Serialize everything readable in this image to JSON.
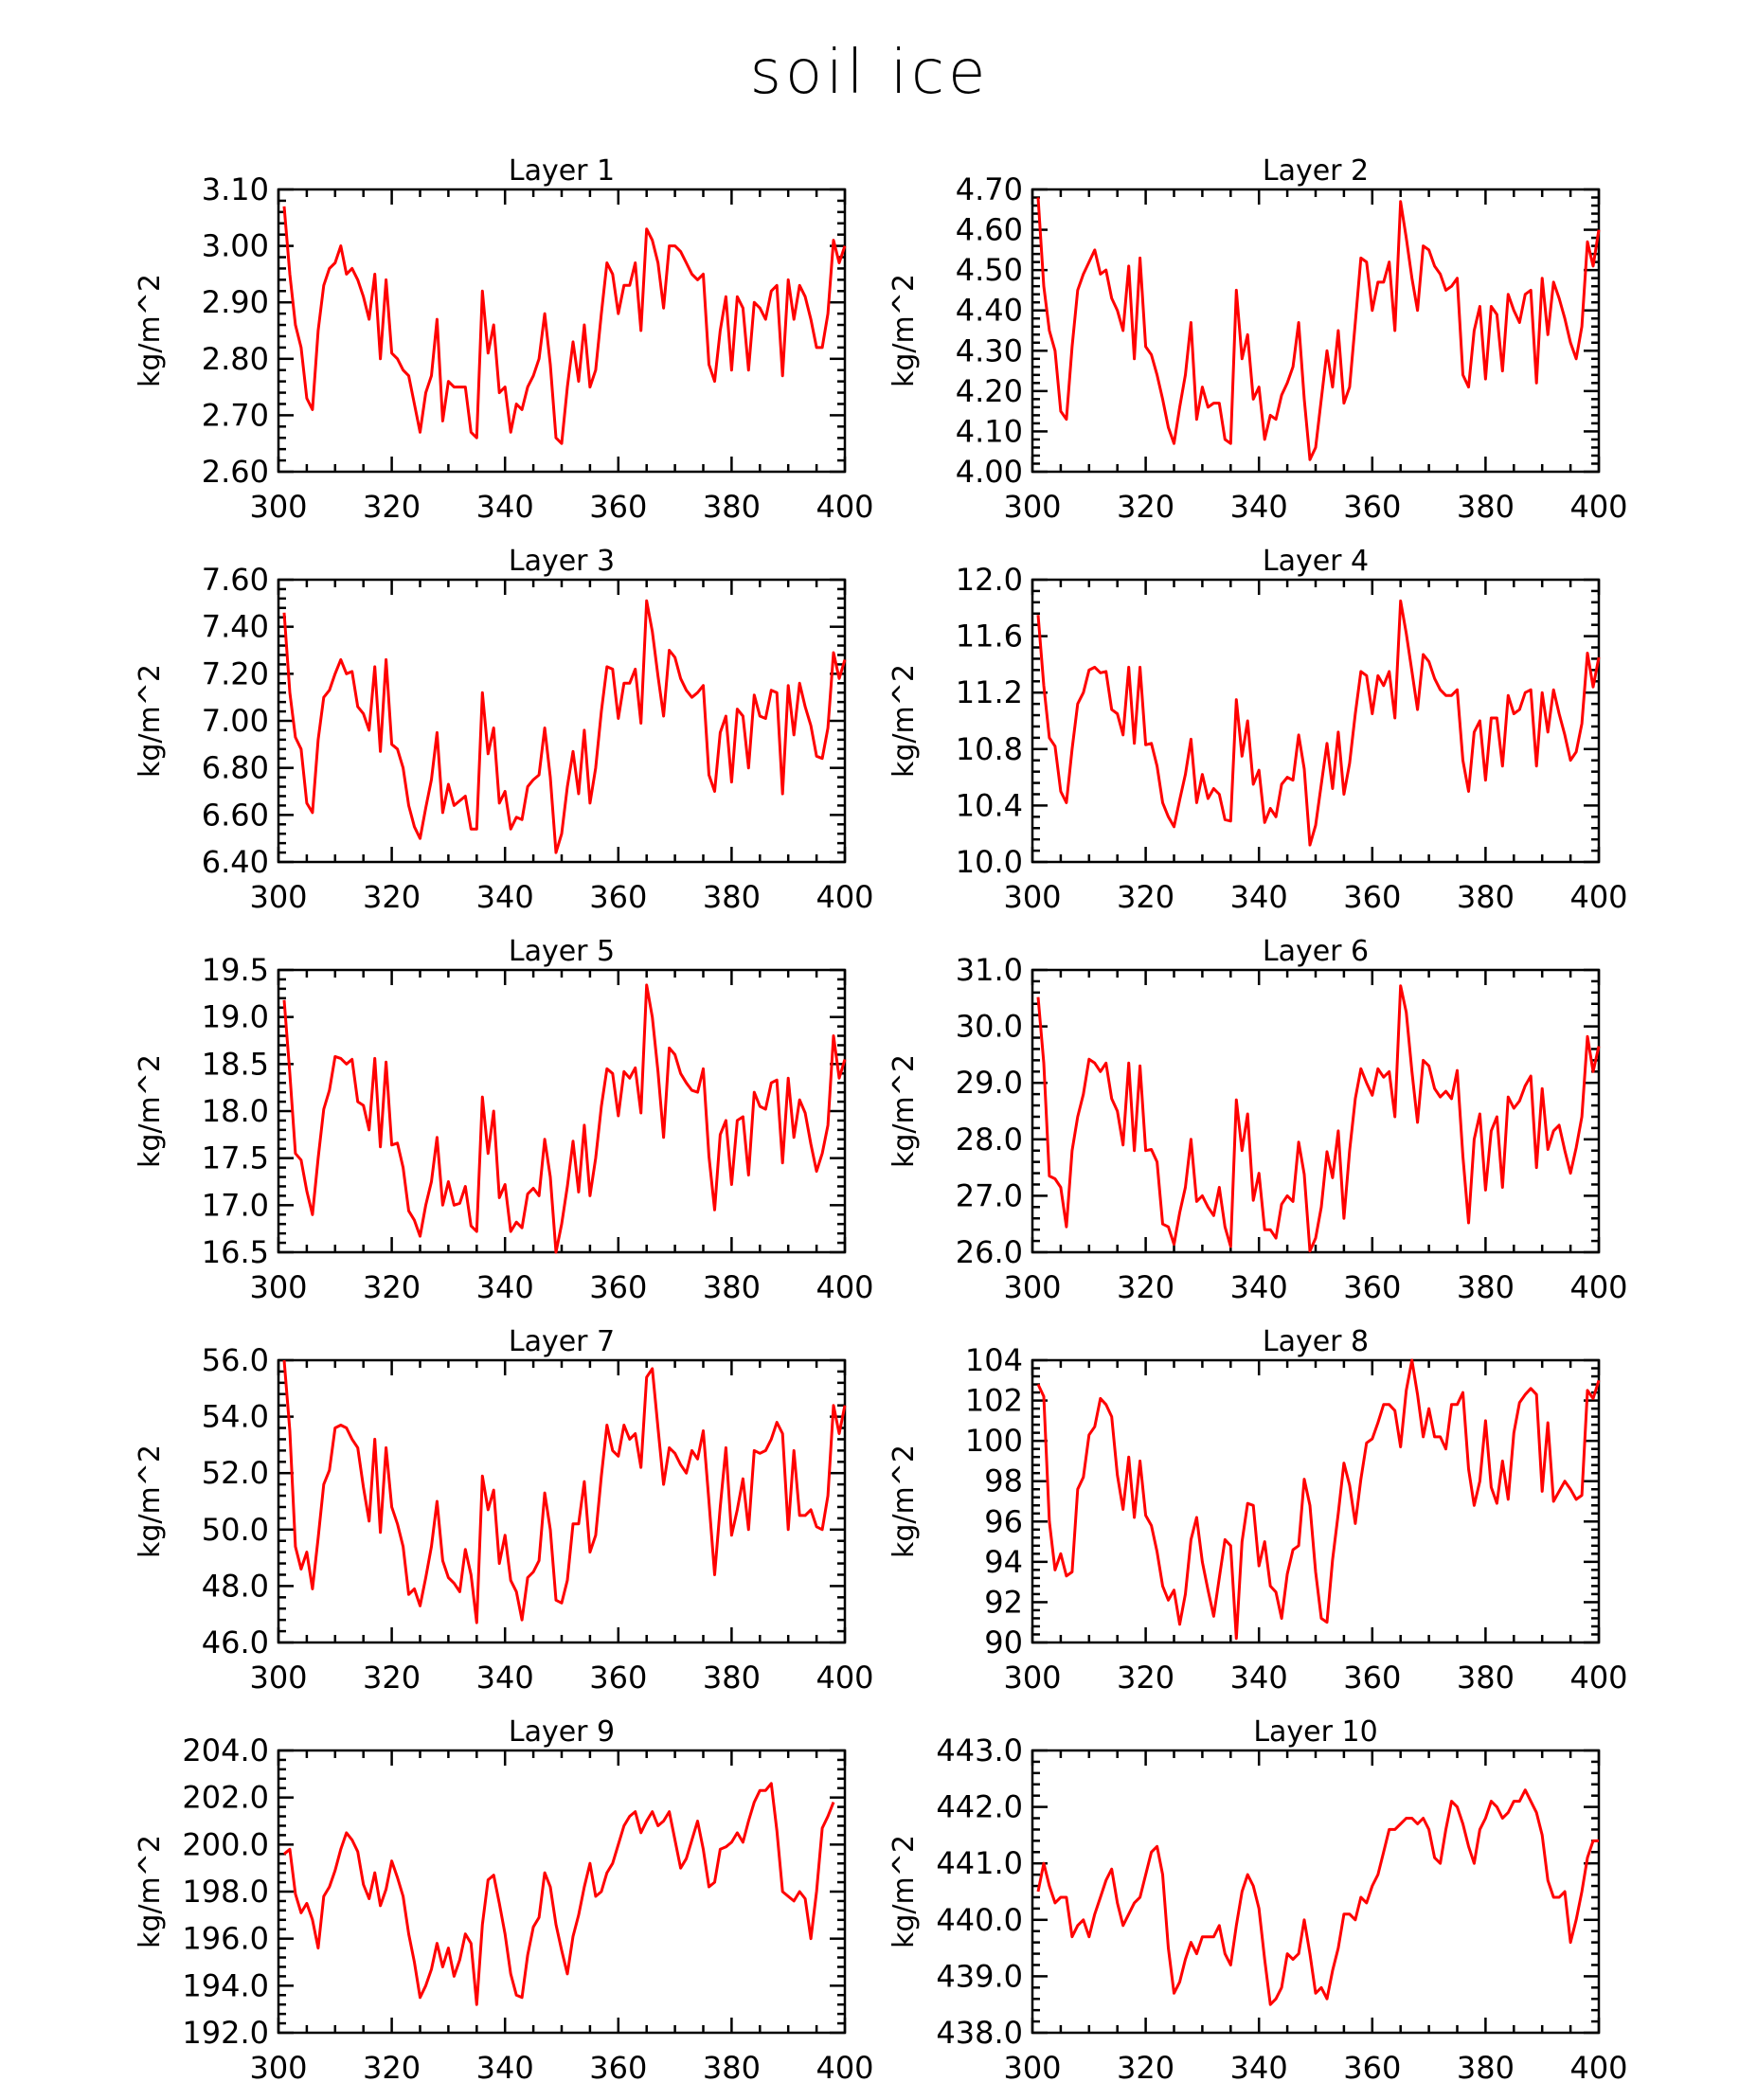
{
  "title": "soil ice",
  "colors": {
    "line": "#ff0000",
    "axis": "#000000"
  },
  "chart_data": [
    {
      "type": "line",
      "title": "Layer 1",
      "ylabel": "kg/m^2",
      "xlim": [
        300,
        400
      ],
      "ylim": [
        2.6,
        3.1
      ],
      "xticks": [
        "300",
        "320",
        "340",
        "360",
        "380",
        "400"
      ],
      "yticks": [
        "2.60",
        "2.70",
        "2.80",
        "2.90",
        "3.00",
        "3.10"
      ],
      "x0": 301,
      "values": [
        3.07,
        2.95,
        2.86,
        2.82,
        2.73,
        2.71,
        2.85,
        2.93,
        2.96,
        2.97,
        3.0,
        2.95,
        2.96,
        2.94,
        2.91,
        2.87,
        2.95,
        2.8,
        2.94,
        2.81,
        2.8,
        2.78,
        2.77,
        2.72,
        2.67,
        2.74,
        2.77,
        2.87,
        2.69,
        2.76,
        2.75,
        2.75,
        2.75,
        2.67,
        2.66,
        2.92,
        2.81,
        2.86,
        2.74,
        2.75,
        2.67,
        2.72,
        2.71,
        2.75,
        2.77,
        2.8,
        2.88,
        2.79,
        2.66,
        2.65,
        2.75,
        2.83,
        2.76,
        2.86,
        2.75,
        2.78,
        2.88,
        2.97,
        2.95,
        2.88,
        2.93,
        2.93,
        2.97,
        2.85,
        3.03,
        3.01,
        2.97,
        2.89,
        3.0,
        3.0,
        2.99,
        2.97,
        2.95,
        2.94,
        2.95,
        2.79,
        2.76,
        2.85,
        2.91,
        2.78,
        2.91,
        2.89,
        2.78,
        2.9,
        2.89,
        2.87,
        2.92,
        2.93,
        2.77,
        2.94,
        2.87,
        2.93,
        2.91,
        2.87,
        2.82,
        2.82,
        2.88,
        3.01,
        2.97,
        3.0
      ]
    },
    {
      "type": "line",
      "title": "Layer 2",
      "ylabel": "kg/m^2",
      "xlim": [
        300,
        400
      ],
      "ylim": [
        4.0,
        4.7
      ],
      "xticks": [
        "300",
        "320",
        "340",
        "360",
        "380",
        "400"
      ],
      "yticks": [
        "4.00",
        "4.10",
        "4.20",
        "4.30",
        "4.40",
        "4.50",
        "4.60",
        "4.70"
      ],
      "x0": 301,
      "values": [
        4.68,
        4.46,
        4.35,
        4.3,
        4.15,
        4.13,
        4.31,
        4.45,
        4.49,
        4.52,
        4.55,
        4.49,
        4.5,
        4.43,
        4.4,
        4.35,
        4.51,
        4.28,
        4.53,
        4.31,
        4.29,
        4.24,
        4.18,
        4.11,
        4.07,
        4.16,
        4.24,
        4.37,
        4.13,
        4.21,
        4.16,
        4.17,
        4.17,
        4.08,
        4.07,
        4.45,
        4.28,
        4.34,
        4.18,
        4.21,
        4.08,
        4.14,
        4.13,
        4.19,
        4.22,
        4.26,
        4.37,
        4.18,
        4.03,
        4.06,
        4.18,
        4.3,
        4.21,
        4.35,
        4.17,
        4.21,
        4.37,
        4.53,
        4.52,
        4.4,
        4.47,
        4.47,
        4.52,
        4.35,
        4.67,
        4.58,
        4.48,
        4.4,
        4.56,
        4.55,
        4.51,
        4.49,
        4.45,
        4.46,
        4.48,
        4.24,
        4.21,
        4.35,
        4.41,
        4.23,
        4.41,
        4.39,
        4.25,
        4.44,
        4.4,
        4.37,
        4.44,
        4.45,
        4.22,
        4.48,
        4.34,
        4.47,
        4.43,
        4.38,
        4.32,
        4.28,
        4.36,
        4.57,
        4.51,
        4.6
      ]
    },
    {
      "type": "line",
      "title": "Layer 3",
      "ylabel": "kg/m^2",
      "xlim": [
        300,
        400
      ],
      "ylim": [
        6.4,
        7.6
      ],
      "xticks": [
        "300",
        "320",
        "340",
        "360",
        "380",
        "400"
      ],
      "yticks": [
        "6.40",
        "6.60",
        "6.80",
        "7.00",
        "7.20",
        "7.40",
        "7.60"
      ],
      "x0": 301,
      "values": [
        7.46,
        7.12,
        6.93,
        6.88,
        6.65,
        6.61,
        6.92,
        7.1,
        7.13,
        7.2,
        7.26,
        7.2,
        7.21,
        7.06,
        7.03,
        6.96,
        7.23,
        6.87,
        7.26,
        6.9,
        6.88,
        6.8,
        6.64,
        6.55,
        6.5,
        6.63,
        6.75,
        6.95,
        6.61,
        6.73,
        6.64,
        6.66,
        6.68,
        6.54,
        6.54,
        7.12,
        6.86,
        6.97,
        6.65,
        6.7,
        6.54,
        6.59,
        6.58,
        6.72,
        6.75,
        6.77,
        6.97,
        6.76,
        6.44,
        6.52,
        6.72,
        6.87,
        6.69,
        6.96,
        6.65,
        6.8,
        7.04,
        7.23,
        7.22,
        7.01,
        7.16,
        7.16,
        7.22,
        6.99,
        7.51,
        7.38,
        7.19,
        7.02,
        7.3,
        7.27,
        7.18,
        7.13,
        7.1,
        7.12,
        7.15,
        6.77,
        6.7,
        6.95,
        7.02,
        6.74,
        7.05,
        7.02,
        6.8,
        7.11,
        7.02,
        7.01,
        7.13,
        7.12,
        6.69,
        7.15,
        6.94,
        7.16,
        7.06,
        6.98,
        6.85,
        6.84,
        6.97,
        7.29,
        7.18,
        7.26
      ]
    },
    {
      "type": "line",
      "title": "Layer 4",
      "ylabel": "kg/m^2",
      "xlim": [
        300,
        400
      ],
      "ylim": [
        10.0,
        12.0
      ],
      "xticks": [
        "300",
        "320",
        "340",
        "360",
        "380",
        "400"
      ],
      "yticks": [
        "10.0",
        "10.4",
        "10.8",
        "11.2",
        "11.6",
        "12.0"
      ],
      "x0": 301,
      "values": [
        11.75,
        11.25,
        10.88,
        10.82,
        10.5,
        10.42,
        10.8,
        11.12,
        11.2,
        11.36,
        11.38,
        11.34,
        11.35,
        11.08,
        11.05,
        10.9,
        11.38,
        10.84,
        11.38,
        10.83,
        10.84,
        10.68,
        10.42,
        10.32,
        10.25,
        10.44,
        10.62,
        10.87,
        10.42,
        10.62,
        10.45,
        10.52,
        10.48,
        10.3,
        10.29,
        11.15,
        10.75,
        11.0,
        10.55,
        10.65,
        10.28,
        10.38,
        10.32,
        10.55,
        10.6,
        10.58,
        10.9,
        10.66,
        10.12,
        10.26,
        10.55,
        10.84,
        10.52,
        10.92,
        10.48,
        10.7,
        11.05,
        11.35,
        11.32,
        11.05,
        11.32,
        11.25,
        11.35,
        11.02,
        11.85,
        11.62,
        11.35,
        11.08,
        11.47,
        11.42,
        11.3,
        11.22,
        11.18,
        11.18,
        11.22,
        10.72,
        10.5,
        10.92,
        11.0,
        10.58,
        11.02,
        11.02,
        10.68,
        11.18,
        11.05,
        11.08,
        11.2,
        11.22,
        10.68,
        11.2,
        10.92,
        11.22,
        11.05,
        10.9,
        10.72,
        10.78,
        10.98,
        11.48,
        11.24,
        11.45
      ]
    },
    {
      "type": "line",
      "title": "Layer 5",
      "ylabel": "kg/m^2",
      "xlim": [
        300,
        400
      ],
      "ylim": [
        16.5,
        19.5
      ],
      "xticks": [
        "300",
        "320",
        "340",
        "360",
        "380",
        "400"
      ],
      "yticks": [
        "16.5",
        "17.0",
        "17.5",
        "18.0",
        "18.5",
        "19.0",
        "19.5"
      ],
      "x0": 301,
      "values": [
        19.18,
        18.4,
        17.55,
        17.48,
        17.15,
        16.9,
        17.5,
        18.02,
        18.22,
        18.58,
        18.56,
        18.5,
        18.55,
        18.1,
        18.06,
        17.8,
        18.56,
        17.62,
        18.52,
        17.64,
        17.66,
        17.4,
        16.94,
        16.84,
        16.67,
        17.0,
        17.25,
        17.72,
        17.0,
        17.25,
        17.0,
        17.02,
        17.2,
        16.78,
        16.72,
        18.15,
        17.55,
        18.0,
        17.08,
        17.22,
        16.72,
        16.82,
        16.76,
        17.12,
        17.18,
        17.1,
        17.7,
        17.3,
        16.5,
        16.8,
        17.2,
        17.68,
        17.14,
        17.85,
        17.1,
        17.5,
        18.05,
        18.45,
        18.4,
        17.95,
        18.42,
        18.35,
        18.46,
        17.98,
        19.34,
        19.0,
        18.42,
        17.72,
        18.67,
        18.6,
        18.4,
        18.3,
        18.22,
        18.2,
        18.45,
        17.52,
        16.95,
        17.75,
        17.9,
        17.22,
        17.9,
        17.94,
        17.32,
        18.2,
        18.05,
        18.02,
        18.3,
        18.33,
        17.45,
        18.35,
        17.72,
        18.12,
        17.98,
        17.65,
        17.36,
        17.55,
        17.85,
        18.8,
        18.35,
        18.55
      ]
    },
    {
      "type": "line",
      "title": "Layer 6",
      "ylabel": "kg/m^2",
      "xlim": [
        300,
        400
      ],
      "ylim": [
        26.0,
        31.0
      ],
      "xticks": [
        "300",
        "320",
        "340",
        "360",
        "380",
        "400"
      ],
      "yticks": [
        "26.0",
        "27.0",
        "28.0",
        "29.0",
        "30.0",
        "31.0"
      ],
      "x0": 301,
      "values": [
        30.52,
        29.35,
        27.35,
        27.3,
        27.15,
        26.45,
        27.8,
        28.4,
        28.8,
        29.42,
        29.35,
        29.2,
        29.35,
        28.72,
        28.5,
        27.9,
        29.35,
        27.8,
        29.3,
        27.8,
        27.82,
        27.6,
        26.5,
        26.45,
        26.14,
        26.7,
        27.15,
        28.0,
        26.9,
        27.0,
        26.8,
        26.65,
        27.15,
        26.45,
        26.1,
        28.7,
        27.8,
        28.45,
        26.92,
        27.4,
        26.4,
        26.4,
        26.25,
        26.85,
        27.0,
        26.9,
        27.95,
        27.38,
        26.02,
        26.25,
        26.8,
        27.78,
        27.32,
        28.15,
        26.6,
        27.8,
        28.72,
        29.25,
        29.0,
        28.78,
        29.25,
        29.1,
        29.2,
        28.4,
        30.72,
        30.25,
        29.2,
        28.3,
        29.4,
        29.3,
        28.9,
        28.75,
        28.85,
        28.72,
        29.22,
        27.7,
        26.52,
        28.0,
        28.45,
        27.1,
        28.15,
        28.4,
        27.15,
        28.75,
        28.55,
        28.68,
        28.95,
        29.12,
        27.5,
        28.9,
        27.82,
        28.15,
        28.25,
        27.8,
        27.4,
        27.85,
        28.4,
        29.82,
        29.2,
        29.65
      ]
    },
    {
      "type": "line",
      "title": "Layer 7",
      "ylabel": "kg/m^2",
      "xlim": [
        300,
        400
      ],
      "ylim": [
        46.0,
        56.0
      ],
      "xticks": [
        "300",
        "320",
        "340",
        "360",
        "380",
        "400"
      ],
      "yticks": [
        "46.0",
        "48.0",
        "50.0",
        "52.0",
        "54.0",
        "56.0"
      ],
      "x0": 301,
      "values": [
        56.0,
        53.5,
        49.4,
        48.6,
        49.2,
        47.9,
        49.7,
        51.6,
        52.1,
        53.6,
        53.7,
        53.6,
        53.2,
        52.9,
        51.5,
        50.3,
        53.2,
        49.9,
        52.9,
        50.8,
        50.2,
        49.4,
        47.7,
        47.9,
        47.3,
        48.3,
        49.4,
        51.0,
        48.9,
        48.3,
        48.1,
        47.8,
        49.3,
        48.4,
        46.7,
        51.9,
        50.7,
        51.4,
        48.8,
        49.8,
        48.2,
        47.8,
        46.8,
        48.3,
        48.5,
        48.9,
        51.3,
        50.0,
        47.5,
        47.4,
        48.2,
        50.2,
        50.2,
        51.7,
        49.2,
        49.8,
        51.9,
        53.7,
        52.8,
        52.6,
        53.7,
        53.2,
        53.4,
        52.2,
        55.4,
        55.7,
        53.6,
        51.6,
        52.9,
        52.7,
        52.3,
        52.0,
        52.8,
        52.5,
        53.5,
        51.0,
        48.4,
        50.8,
        52.9,
        49.8,
        50.7,
        51.8,
        50.0,
        52.8,
        52.7,
        52.8,
        53.2,
        53.8,
        53.4,
        50.0,
        52.8,
        50.5,
        50.5,
        50.7,
        50.1,
        50.0,
        51.2,
        54.4,
        53.4,
        54.4
      ]
    },
    {
      "type": "line",
      "title": "Layer 8",
      "ylabel": "kg/m^2",
      "xlim": [
        300,
        400
      ],
      "ylim": [
        90,
        104
      ],
      "xticks": [
        "300",
        "320",
        "340",
        "360",
        "380",
        "400"
      ],
      "yticks": [
        "90",
        "92",
        "94",
        "96",
        "98",
        "100",
        "102",
        "104"
      ],
      "x0": 301,
      "values": [
        102.8,
        102.2,
        96.0,
        93.6,
        94.4,
        93.3,
        93.5,
        97.6,
        98.2,
        100.3,
        100.7,
        102.1,
        101.8,
        101.2,
        98.3,
        96.6,
        99.2,
        96.2,
        99.0,
        96.3,
        95.8,
        94.5,
        92.8,
        92.1,
        92.6,
        90.9,
        92.4,
        95.1,
        96.2,
        94.0,
        92.6,
        91.3,
        93.2,
        95.1,
        94.8,
        90.2,
        95.0,
        96.9,
        96.8,
        93.8,
        95.0,
        92.8,
        92.5,
        91.2,
        93.4,
        94.6,
        94.8,
        98.1,
        96.8,
        93.5,
        91.2,
        91.0,
        94.1,
        96.4,
        98.9,
        97.8,
        95.9,
        98.1,
        99.9,
        100.1,
        100.9,
        101.8,
        101.8,
        101.5,
        99.7,
        102.5,
        104.0,
        102.3,
        100.2,
        101.6,
        100.2,
        100.2,
        99.6,
        101.8,
        101.8,
        102.4,
        98.6,
        96.8,
        98.0,
        101.0,
        97.7,
        96.9,
        99.0,
        97.1,
        100.4,
        101.9,
        102.3,
        102.6,
        102.3,
        97.5,
        100.9,
        97.0,
        97.5,
        98.0,
        97.6,
        97.1,
        97.3,
        102.5,
        102.1,
        103.0
      ]
    },
    {
      "type": "line",
      "title": "Layer 9",
      "ylabel": "kg/m^2",
      "xlim": [
        300,
        400
      ],
      "ylim": [
        192.0,
        204.0
      ],
      "xticks": [
        "300",
        "320",
        "340",
        "360",
        "380",
        "400"
      ],
      "yticks": [
        "192.0",
        "194.0",
        "196.0",
        "198.0",
        "200.0",
        "202.0",
        "204.0"
      ],
      "x0": 301,
      "values": [
        199.6,
        199.8,
        197.9,
        197.1,
        197.5,
        196.8,
        195.6,
        197.8,
        198.2,
        198.9,
        199.8,
        200.5,
        200.2,
        199.7,
        198.3,
        197.7,
        198.8,
        197.4,
        198.1,
        199.3,
        198.6,
        197.8,
        196.2,
        195.0,
        193.5,
        194.0,
        194.7,
        195.8,
        194.8,
        195.6,
        194.4,
        195.1,
        196.2,
        195.8,
        193.2,
        196.6,
        198.5,
        198.7,
        197.5,
        196.2,
        194.5,
        193.6,
        193.5,
        195.3,
        196.5,
        196.9,
        198.8,
        198.2,
        196.6,
        195.5,
        194.5,
        196.1,
        197.0,
        198.2,
        199.2,
        197.8,
        198.0,
        198.8,
        199.2,
        200.0,
        200.8,
        201.2,
        201.4,
        200.5,
        201.0,
        201.4,
        200.8,
        201.0,
        201.4,
        200.2,
        199.0,
        199.4,
        200.2,
        201.0,
        199.8,
        198.2,
        198.4,
        199.8,
        199.9,
        200.1,
        200.5,
        200.1,
        201.0,
        201.8,
        202.3,
        202.3,
        202.6,
        200.6,
        198.0,
        197.8,
        197.6,
        198.0,
        197.7,
        196.0,
        198.0,
        200.7,
        201.2,
        201.8
      ]
    },
    {
      "type": "line",
      "title": "Layer 10",
      "ylabel": "kg/m^2",
      "xlim": [
        300,
        400
      ],
      "ylim": [
        438.0,
        443.0
      ],
      "xticks": [
        "300",
        "320",
        "340",
        "360",
        "380",
        "400"
      ],
      "yticks": [
        "438.0",
        "439.0",
        "440.0",
        "441.0",
        "442.0",
        "443.0"
      ],
      "x0": 301,
      "values": [
        440.5,
        441.0,
        440.6,
        440.3,
        440.4,
        440.4,
        439.7,
        439.9,
        440.0,
        439.7,
        440.1,
        440.4,
        440.7,
        440.9,
        440.3,
        439.9,
        440.1,
        440.3,
        440.4,
        440.8,
        441.2,
        441.3,
        440.8,
        439.5,
        438.7,
        438.9,
        439.3,
        439.6,
        439.4,
        439.7,
        439.7,
        439.7,
        439.9,
        439.4,
        439.2,
        439.9,
        440.5,
        440.8,
        440.6,
        440.2,
        439.3,
        438.5,
        438.6,
        438.8,
        439.4,
        439.3,
        439.4,
        440.0,
        439.4,
        438.7,
        438.8,
        438.6,
        439.1,
        439.5,
        440.1,
        440.1,
        440.0,
        440.4,
        440.3,
        440.6,
        440.8,
        441.2,
        441.6,
        441.6,
        441.7,
        441.8,
        441.8,
        441.7,
        441.8,
        441.6,
        441.1,
        441.0,
        441.6,
        442.1,
        442.0,
        441.7,
        441.3,
        441.0,
        441.6,
        441.8,
        442.1,
        442.0,
        441.8,
        441.9,
        442.1,
        442.1,
        442.3,
        442.1,
        441.9,
        441.5,
        440.7,
        440.4,
        440.4,
        440.5,
        439.6,
        440.0,
        440.5,
        441.1,
        441.4,
        441.4
      ]
    }
  ]
}
